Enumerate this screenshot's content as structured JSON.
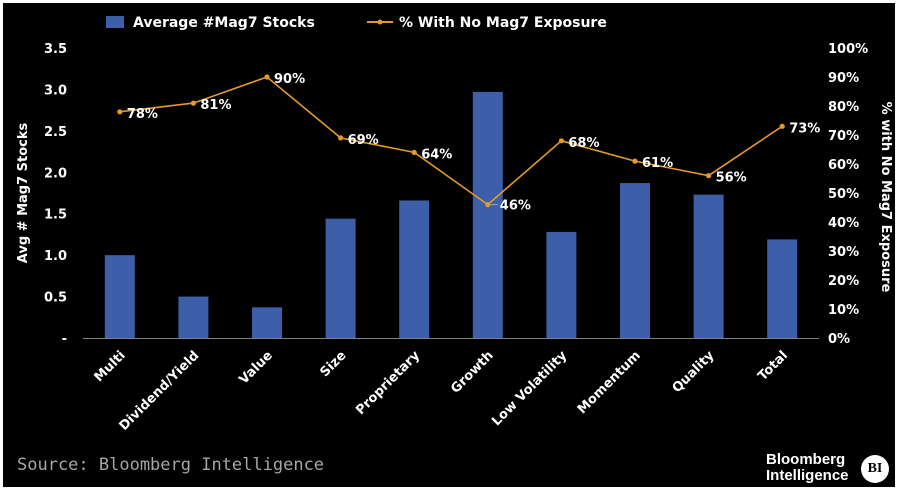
{
  "chart_data": {
    "type": "bar+line",
    "categories": [
      "Multi",
      "Dividend/Yield",
      "Value",
      "Size",
      "Proprietary",
      "Growth",
      "Low Volatility",
      "Momentum",
      "Quality",
      "Total"
    ],
    "series": [
      {
        "name": "Average #Mag7 Stocks",
        "type": "bar",
        "axis": "left",
        "color": "#3d5ea8",
        "values": [
          1.0,
          0.5,
          0.37,
          1.44,
          1.66,
          2.97,
          1.28,
          1.87,
          1.73,
          1.19
        ]
      },
      {
        "name": "% With No Mag7 Exposure",
        "type": "line",
        "axis": "right",
        "color": "#e39a2b",
        "values": [
          78,
          81,
          90,
          69,
          64,
          46,
          68,
          61,
          56,
          73
        ],
        "labels": [
          "78%",
          "81%",
          "90%",
          "69%",
          "64%",
          "46%",
          "68%",
          "61%",
          "56%",
          "73%"
        ]
      }
    ],
    "ylabel": "Avg # Mag7 Stocks",
    "ylabel_right": "% with No Mag7 Exposure",
    "ylim": [
      0,
      3.5
    ],
    "ylim_right": [
      0,
      100
    ],
    "yticks": [
      "-",
      "0.5",
      "1.0",
      "1.5",
      "2.0",
      "2.5",
      "3.0",
      "3.5"
    ],
    "yticks_right": [
      "0%",
      "10%",
      "20%",
      "30%",
      "40%",
      "50%",
      "60%",
      "70%",
      "80%",
      "90%",
      "100%"
    ],
    "legend_position": "top"
  },
  "footer": {
    "source": "Source: Bloomberg Intelligence",
    "brand_line1": "Bloomberg",
    "brand_line2": "Intelligence",
    "brand_badge": "BI"
  }
}
